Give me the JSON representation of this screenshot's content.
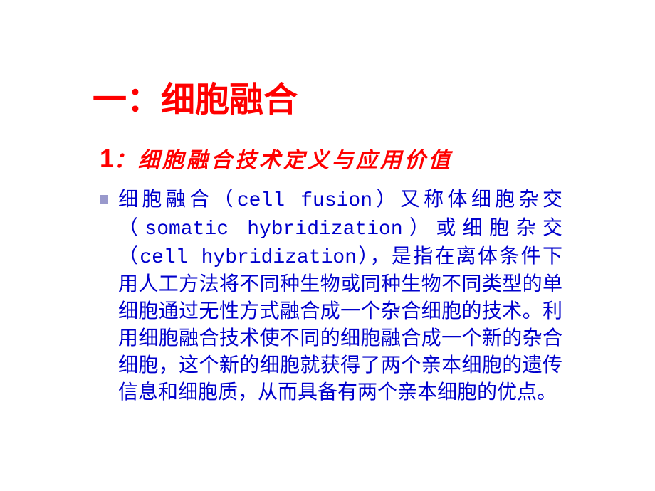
{
  "slide": {
    "title": "一：细胞融合",
    "subtitle_num": "1",
    "subtitle_text": "：细胞融合技术定义与应用价值",
    "body_p1": "细胞融合（",
    "body_latin1": "cell fusion",
    "body_p2": "）又称体细胞杂交（",
    "body_latin2": "somatic hybridization",
    "body_p3": "）或细胞杂交（",
    "body_latin3": "cell hybridization",
    "body_p4": "），是指在离体条件下用人工方法将不同种生物或同种生物不同类型的单细胞通过无性方式融合成一个杂合细胞的技术。利用细胞融合技术使不同的细胞融合成一个新的杂合细胞，这个新的细胞就获得了两个亲本细胞的遗传信息和细胞质，从而具备有两个亲本细胞的优点。"
  },
  "colors": {
    "title_color": "#ff0000",
    "subtitle_color": "#ff0000",
    "body_color": "#0000cc",
    "bullet_color": "#9999cc",
    "background": "#ffffff"
  },
  "typography": {
    "title_fontsize": 48,
    "subtitle_fontsize": 30,
    "body_fontsize": 28,
    "title_family": "SimHei",
    "subtitle_family": "KaiTi",
    "body_family": "SimSun",
    "latin_family": "Courier New"
  }
}
